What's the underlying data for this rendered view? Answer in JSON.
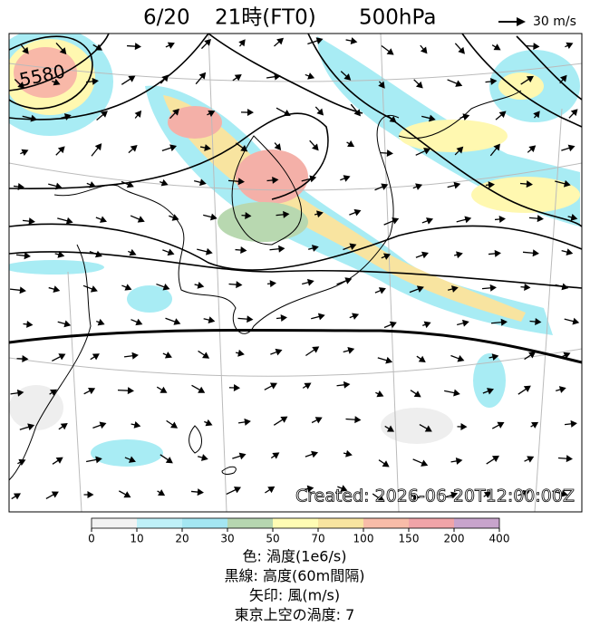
{
  "title": {
    "date": "6/20",
    "time": "21時(FT0)",
    "level": "500hPa"
  },
  "wind_legend": "30 m/s",
  "contour_label": "5580",
  "created": "Created: 2026-06-20T12:00:00Z",
  "colorbar": {
    "ticks": [
      0,
      10,
      20,
      30,
      50,
      70,
      100,
      150,
      200,
      400
    ]
  },
  "caption": [
    "色: 渦度(1e6/s)",
    "黒線: 高度(60m間隔)",
    "矢印: 風(m/s)",
    "東京上空の渦度: 7"
  ]
}
